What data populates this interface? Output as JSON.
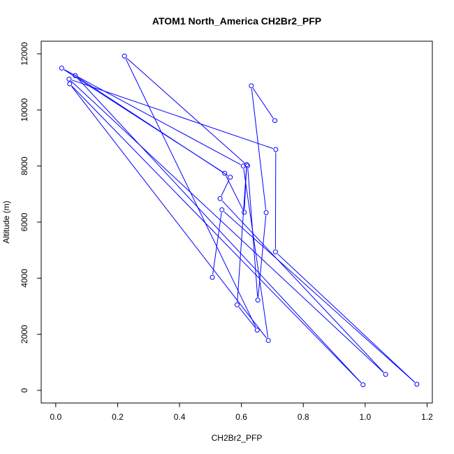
{
  "chart_data": {
    "type": "line",
    "title": "ATOM1 North_America CH2Br2_PFP",
    "xlabel": "CH2Br2_PFP",
    "ylabel": "Altitude (m)",
    "xlim": [
      -0.047,
      1.217
    ],
    "ylim": [
      -450,
      12450
    ],
    "xticks": [
      0.0,
      0.2,
      0.4,
      0.6,
      0.8,
      1.0,
      1.2
    ],
    "xtick_labels": [
      "0.0",
      "0.2",
      "0.4",
      "0.6",
      "0.8",
      "1.0",
      "1.2"
    ],
    "yticks": [
      0,
      2000,
      4000,
      6000,
      8000,
      10000,
      12000
    ],
    "ytick_labels": [
      "0",
      "2000",
      "4000",
      "6000",
      "8000",
      "10000",
      "12000"
    ],
    "grid": false,
    "series": [
      {
        "color": "#0000ff",
        "x": [
          0.708,
          0.632,
          0.68,
          0.653,
          0.62,
          0.222,
          0.651,
          0.586,
          0.617,
          0.609,
          0.546,
          0.019,
          0.606,
          0.687,
          0.045,
          0.993,
          0.063,
          0.564,
          0.531,
          1.066,
          0.043,
          0.711,
          0.71,
          1.167,
          0.537,
          0.506
        ],
        "y": [
          9620,
          10860,
          6340,
          3220,
          8010,
          11920,
          2150,
          3050,
          8050,
          6350,
          7740,
          11490,
          8000,
          1780,
          10930,
          200,
          11220,
          7600,
          6840,
          570,
          11100,
          8590,
          4940,
          220,
          6440,
          4030
        ]
      }
    ]
  }
}
